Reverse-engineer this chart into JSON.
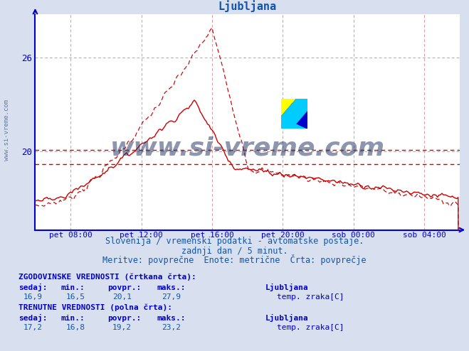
{
  "title": "Ljubljana",
  "title_color": "#1155aa",
  "bg_color": "#d8e0f0",
  "plot_bg_color": "#ffffff",
  "grid_color": "#dd9999",
  "axis_color": "#0000cc",
  "text_color": "#1155aa",
  "watermark_text": "www.si-vreme.com",
  "watermark_color": "#1a3060",
  "yticks": [
    20,
    26
  ],
  "ymin": 15.0,
  "ymax": 28.8,
  "hline_1": 20.1,
  "hline_2": 19.2,
  "xmin": 0,
  "xmax": 288,
  "xtick_positions": [
    24,
    72,
    120,
    168,
    216,
    264
  ],
  "xtick_labels": [
    "pet 08:00",
    "pet 12:00",
    "pet 16:00",
    "pet 20:00",
    "sob 00:00",
    "sob 04:00"
  ],
  "subtitle1": "Slovenija / vremenski podatki - avtomatske postaje.",
  "subtitle2": "zadnji dan / 5 minut.",
  "subtitle3": "Meritve: povprečne  Enote: metrične  Črta: povprečje",
  "label_hist": "ZGODOVINSKE VREDNOSTI (črtkana črta):",
  "label_curr": "TRENUTNE VREDNOSTI (polna črta):",
  "col_headers": [
    "sedaj:",
    "min.:",
    "povpr.:",
    "maks.:"
  ],
  "hist_values": [
    "16,9",
    "16,5",
    "20,1",
    "27,9"
  ],
  "curr_values": [
    "17,2",
    "16,8",
    "19,2",
    "23,2"
  ],
  "series_label": "Ljubljana",
  "series_unit": "temp. zraka[C]",
  "line_color": "#cc0000"
}
